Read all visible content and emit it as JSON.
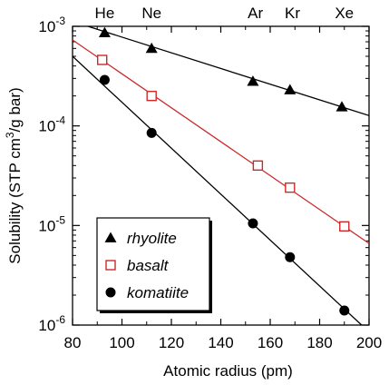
{
  "chart_data": {
    "type": "scatter",
    "title": "",
    "xlabel": "Atomic radius (pm)",
    "ylabel": "Solubility (STP cm³/g bar)",
    "ylabel_parts": {
      "prefix": "Solubility (STP cm",
      "superscript": "3",
      "suffix": "/g bar)"
    },
    "xlim": [
      80,
      200
    ],
    "ylim": [
      1e-06,
      0.001
    ],
    "yscale": "log",
    "grid": false,
    "legend_position": "bottom-left",
    "x_ticks": [
      {
        "value": 80,
        "label": "80"
      },
      {
        "value": 100,
        "label": "100"
      },
      {
        "value": 120,
        "label": "120"
      },
      {
        "value": 140,
        "label": "140"
      },
      {
        "value": 160,
        "label": "160"
      },
      {
        "value": 180,
        "label": "180"
      },
      {
        "value": 200,
        "label": "200"
      }
    ],
    "y_ticks": [
      {
        "value": 1e-06,
        "base": "10",
        "exp": "-6"
      },
      {
        "value": 1e-05,
        "base": "10",
        "exp": "-5"
      },
      {
        "value": 0.0001,
        "base": "10",
        "exp": "-4"
      },
      {
        "value": 0.001,
        "base": "10",
        "exp": "-3"
      }
    ],
    "top_labels": [
      {
        "x": 93,
        "label": "He"
      },
      {
        "x": 112,
        "label": "Ne"
      },
      {
        "x": 154,
        "label": "Ar"
      },
      {
        "x": 169,
        "label": "Kr"
      },
      {
        "x": 190,
        "label": "Xe"
      }
    ],
    "series": [
      {
        "name": "rhyolite",
        "marker": "filled-triangle",
        "color": "#000000",
        "x": [
          93,
          112,
          153,
          168,
          189
        ],
        "y": [
          0.00086,
          0.0006,
          0.00028,
          0.00023,
          0.000155
        ],
        "fit": {
          "x": [
            80,
            200
          ],
          "y": [
            0.00112,
            0.000127
          ]
        }
      },
      {
        "name": "basalt",
        "marker": "open-square",
        "color": "#cc2a2a",
        "x": [
          92,
          112,
          155,
          168,
          190
        ],
        "y": [
          0.00046,
          0.0002,
          4e-05,
          2.4e-05,
          9.8e-06
        ],
        "fit": {
          "x": [
            80,
            200
          ],
          "y": [
            0.00073,
            6.6e-06
          ]
        }
      },
      {
        "name": "komatiite",
        "marker": "filled-circle",
        "color": "#000000",
        "x": [
          93,
          112,
          153,
          168,
          190
        ],
        "y": [
          0.00029,
          8.5e-05,
          1.05e-05,
          4.8e-06,
          1.4e-06
        ],
        "fit": {
          "x": [
            80,
            197
          ],
          "y": [
            0.0005,
            1e-06
          ]
        }
      }
    ]
  }
}
